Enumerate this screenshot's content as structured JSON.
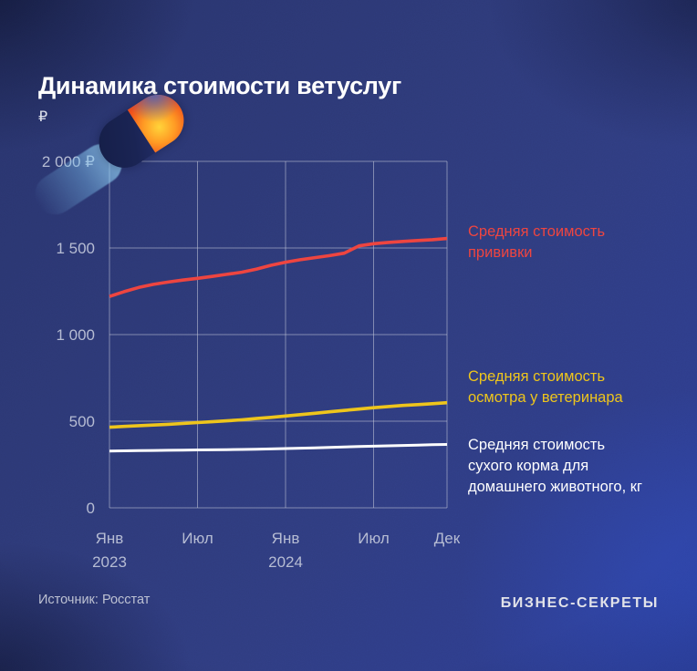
{
  "page": {
    "title": "Динамика стоимости ветуслуг",
    "currency_symbol": "₽",
    "source": "Источник: Росстат",
    "brand": "БИЗНЕС-СЕКРЕТЫ"
  },
  "colors": {
    "background": "#2d3977",
    "grid": "rgba(198,203,219,0.55)",
    "tick_text": "#b6bcd3",
    "vaccine_line": "#ee4540",
    "exam_line": "#eec51c",
    "food_line": "#ffffff"
  },
  "chart_data": {
    "type": "line",
    "title": "Динамика стоимости ветуслуг",
    "ylabel": "₽",
    "ylim": [
      0,
      2000
    ],
    "grid": true,
    "legend_position": "right",
    "x_ticks": [
      {
        "label": "Янв",
        "sublabel": "2023",
        "index": 0
      },
      {
        "label": "Июл",
        "sublabel": "",
        "index": 6
      },
      {
        "label": "Янв",
        "sublabel": "2024",
        "index": 12
      },
      {
        "label": "Июл",
        "sublabel": "",
        "index": 18
      },
      {
        "label": "Дек",
        "sublabel": "",
        "index": 23
      }
    ],
    "y_ticks": [
      {
        "label": "2 000 ₽",
        "value": 2000
      },
      {
        "label": "1 500",
        "value": 1500
      },
      {
        "label": "1 000",
        "value": 1000
      },
      {
        "label": "500",
        "value": 500
      },
      {
        "label": "0",
        "value": 0
      }
    ],
    "series": [
      {
        "name": "vaccine",
        "label": "Средняя стоимость\nпрививки",
        "color": "#ee4540",
        "stroke_width": 3.6,
        "values": [
          1220,
          1248,
          1272,
          1290,
          1303,
          1315,
          1325,
          1336,
          1348,
          1360,
          1378,
          1400,
          1418,
          1432,
          1444,
          1456,
          1470,
          1512,
          1525,
          1532,
          1538,
          1543,
          1548,
          1555
        ]
      },
      {
        "name": "exam",
        "label": "Средняя стоимость\nосмотра у ветеринара",
        "color": "#eec51c",
        "stroke_width": 3.6,
        "values": [
          465,
          470,
          474,
          478,
          482,
          487,
          492,
          497,
          502,
          508,
          515,
          522,
          530,
          538,
          546,
          554,
          562,
          570,
          578,
          585,
          591,
          596,
          601,
          607
        ]
      },
      {
        "name": "food",
        "label": "Средняя стоимость\nсухого корма для\nдомашнего животного, кг",
        "color": "#ffffff",
        "stroke_width": 3.0,
        "values": [
          328,
          329,
          330,
          331,
          332,
          333,
          334,
          335,
          336,
          337,
          338,
          340,
          342,
          344,
          346,
          349,
          351,
          354,
          356,
          358,
          360,
          362,
          364,
          366
        ]
      }
    ]
  }
}
